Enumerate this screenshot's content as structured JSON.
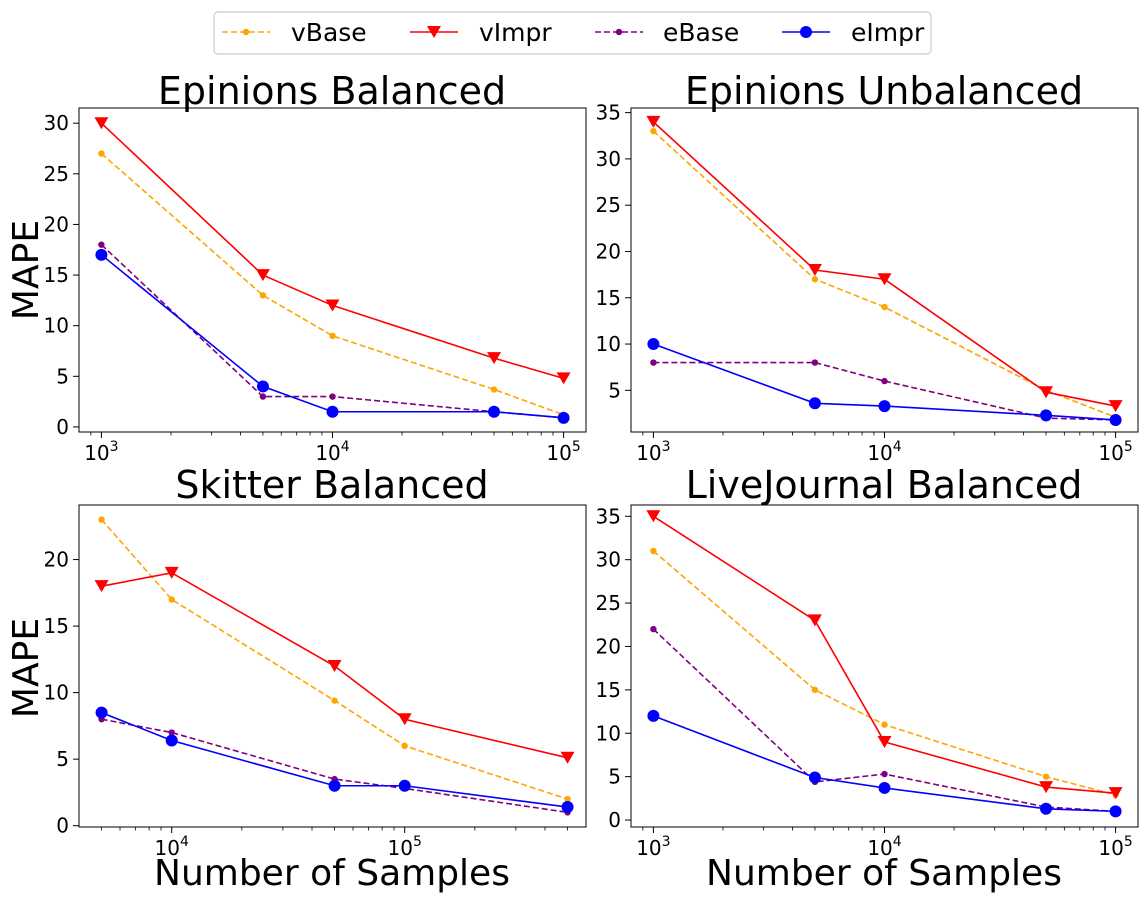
{
  "legend": {
    "entries": [
      {
        "name": "vBase",
        "color": "#FFA500",
        "dash": true,
        "marker": "dot"
      },
      {
        "name": "vImpr",
        "color": "#FF0000",
        "dash": false,
        "marker": "tri"
      },
      {
        "name": "eBase",
        "color": "#800080",
        "dash": true,
        "marker": "dot"
      },
      {
        "name": "eImpr",
        "color": "#0000FF",
        "dash": false,
        "marker": "circle"
      }
    ]
  },
  "chart_data": [
    {
      "type": "line",
      "title": "Epinions Balanced",
      "xlabel": "",
      "ylabel": "MAPE",
      "xscale": "log",
      "xlim": [
        800,
        125000
      ],
      "ylim": [
        -0.5,
        31.5
      ],
      "xticks": [
        {
          "v": 1000,
          "label": "10",
          "exp": "3"
        },
        {
          "v": 10000,
          "label": "10",
          "exp": "4"
        },
        {
          "v": 100000,
          "label": "10",
          "exp": "5"
        }
      ],
      "yticks": [
        0,
        5,
        10,
        15,
        20,
        25,
        30
      ],
      "x": [
        1000,
        5000,
        10000,
        50000,
        100000
      ],
      "series": [
        {
          "name": "vBase",
          "values": [
            27,
            13,
            9,
            3.7,
            1.2
          ]
        },
        {
          "name": "vImpr",
          "values": [
            30,
            15,
            12,
            6.8,
            4.8
          ]
        },
        {
          "name": "eBase",
          "values": [
            18,
            3,
            3,
            1.5,
            0.9
          ]
        },
        {
          "name": "eImpr",
          "values": [
            17,
            4,
            1.5,
            1.5,
            0.9
          ]
        }
      ]
    },
    {
      "type": "line",
      "title": "Epinions Unbalanced",
      "xlabel": "",
      "ylabel": "",
      "xscale": "log",
      "xlim": [
        800,
        125000
      ],
      "ylim": [
        0.5,
        35.5
      ],
      "xticks": [
        {
          "v": 1000,
          "label": "10",
          "exp": "3"
        },
        {
          "v": 10000,
          "label": "10",
          "exp": "4"
        },
        {
          "v": 100000,
          "label": "10",
          "exp": "5"
        }
      ],
      "yticks": [
        5,
        10,
        15,
        20,
        25,
        30,
        35
      ],
      "x": [
        1000,
        5000,
        10000,
        50000,
        100000
      ],
      "series": [
        {
          "name": "vBase",
          "values": [
            33,
            17,
            14,
            5,
            2.1
          ]
        },
        {
          "name": "vImpr",
          "values": [
            34,
            18,
            17,
            4.8,
            3.3
          ]
        },
        {
          "name": "eBase",
          "values": [
            8,
            8,
            6,
            2,
            1.8
          ]
        },
        {
          "name": "eImpr",
          "values": [
            10,
            3.6,
            3.3,
            2.3,
            1.8
          ]
        }
      ]
    },
    {
      "type": "line",
      "title": "Skitter Balanced",
      "xlabel": "Number of Samples",
      "ylabel": "MAPE",
      "xscale": "log",
      "xlim": [
        4000,
        600000
      ],
      "ylim": [
        -0.1,
        24.1
      ],
      "xticks": [
        {
          "v": 10000,
          "label": "10",
          "exp": "4"
        },
        {
          "v": 100000,
          "label": "10",
          "exp": "5"
        }
      ],
      "yticks": [
        0,
        5,
        10,
        15,
        20
      ],
      "x": [
        5000,
        10000,
        50000,
        100000,
        500000
      ],
      "series": [
        {
          "name": "vBase",
          "values": [
            23,
            17,
            9.4,
            6,
            2
          ]
        },
        {
          "name": "vImpr",
          "values": [
            18,
            19,
            12,
            8,
            5.1
          ]
        },
        {
          "name": "eBase",
          "values": [
            8,
            7,
            3.5,
            2.8,
            1
          ]
        },
        {
          "name": "eImpr",
          "values": [
            8.5,
            6.4,
            3,
            3,
            1.4
          ]
        }
      ]
    },
    {
      "type": "line",
      "title": "LiveJournal Balanced",
      "xlabel": "Number of Samples",
      "ylabel": "",
      "xscale": "log",
      "xlim": [
        800,
        125000
      ],
      "ylim": [
        -0.8,
        36.3
      ],
      "xticks": [
        {
          "v": 1000,
          "label": "10",
          "exp": "3"
        },
        {
          "v": 10000,
          "label": "10",
          "exp": "4"
        },
        {
          "v": 100000,
          "label": "10",
          "exp": "5"
        }
      ],
      "yticks": [
        0,
        5,
        10,
        15,
        20,
        25,
        30,
        35
      ],
      "x": [
        1000,
        5000,
        10000,
        50000,
        100000
      ],
      "series": [
        {
          "name": "vBase",
          "values": [
            31,
            15,
            11,
            5,
            2.9
          ]
        },
        {
          "name": "vImpr",
          "values": [
            35,
            23,
            9,
            3.8,
            3.1
          ]
        },
        {
          "name": "eBase",
          "values": [
            22,
            4.4,
            5.3,
            1.5,
            1
          ]
        },
        {
          "name": "eImpr",
          "values": [
            12,
            4.9,
            3.7,
            1.3,
            1
          ]
        }
      ]
    }
  ]
}
